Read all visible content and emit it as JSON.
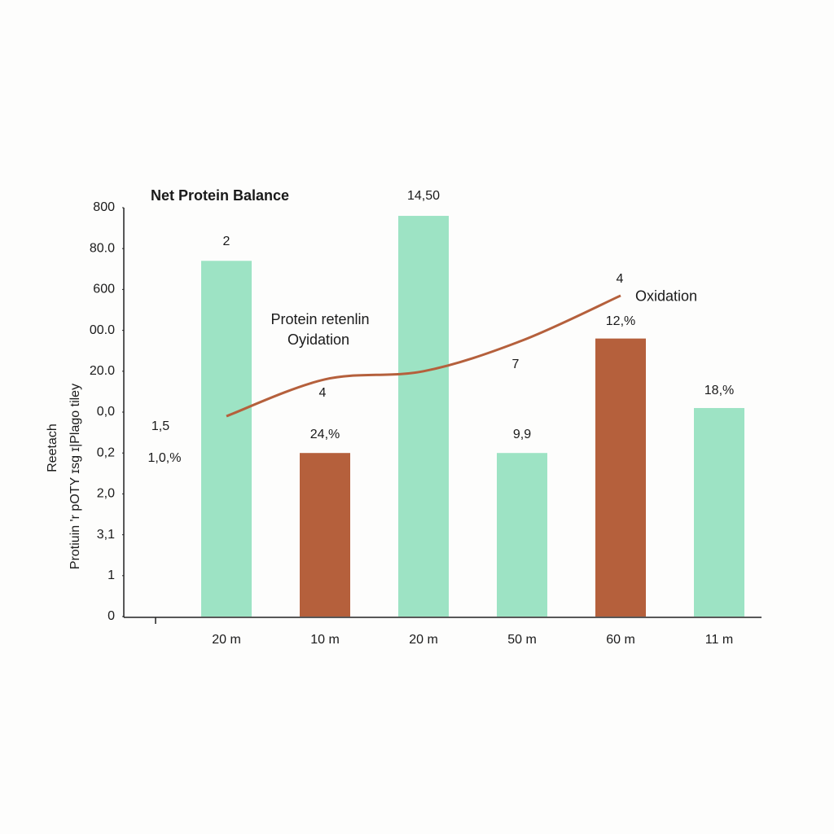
{
  "chart_data": {
    "type": "bar",
    "title": "Net Protein Balance",
    "y_label": [
      "Reetach",
      "Protiuin 'r pOTY ɪsg ɪ|Plago tiley"
    ],
    "categories": [
      "20 m",
      "10 m",
      "20 m",
      "50 m",
      "60 m",
      "11 m"
    ],
    "bars": {
      "values": [
        8.7,
        4.0,
        9.8,
        4.0,
        6.8,
        5.1
      ],
      "colors": [
        "#9de3c4",
        "#b5603c",
        "#9de3c4",
        "#9de3c4",
        "#b5603c",
        "#9de3c4"
      ]
    },
    "line": {
      "name": "Oxidation",
      "color": "#b5603c",
      "values": [
        4.9,
        5.8,
        6.0,
        6.75,
        7.85,
        null
      ]
    },
    "ylim": [
      0,
      10
    ],
    "yticks": [
      {
        "value": 0,
        "label": "0"
      },
      {
        "value": 1,
        "label": "1"
      },
      {
        "value": 2,
        "label": "3,1"
      },
      {
        "value": 3,
        "label": "2,0"
      },
      {
        "value": 4,
        "label": "0,2"
      },
      {
        "value": 5,
        "label": "0,0"
      },
      {
        "value": 6,
        "label": "20.0"
      },
      {
        "value": 7,
        "label": "00.0"
      },
      {
        "value": 8,
        "label": "600"
      },
      {
        "value": 9,
        "label": "80.0"
      },
      {
        "value": 10,
        "label": "800"
      }
    ],
    "annotations": [
      "2",
      "24,%",
      "14,50",
      "9,9",
      "12,%",
      "18,%",
      "1,5",
      "1,0,%",
      "4",
      "7",
      "4",
      "Protein retenlin",
      "Oyidation"
    ]
  }
}
